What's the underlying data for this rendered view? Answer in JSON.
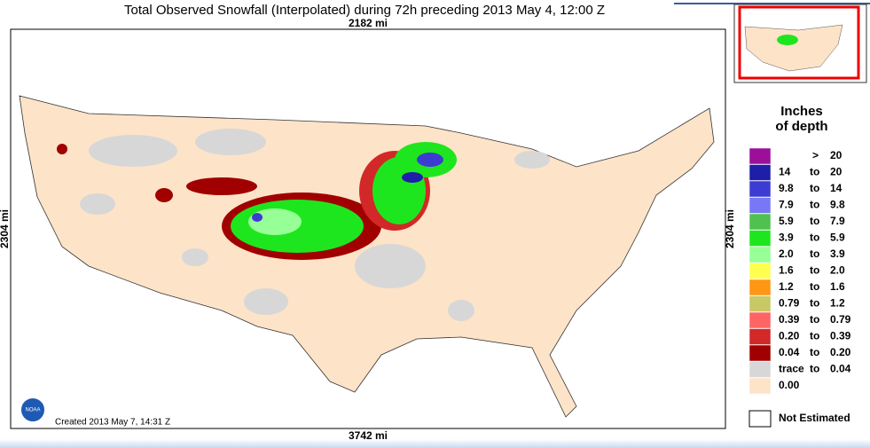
{
  "header": {
    "title": "Total Observed Snowfall (Interpolated) during 72h preceding 2013 May 4, 12:00 Z"
  },
  "map": {
    "top_distance": "2182 mi",
    "left_distance": "2304 mi",
    "right_distance": "2304 mi",
    "bottom_distance": "3742 mi",
    "created": "Created 2013 May 7, 14:31 Z",
    "logo": "NOAA"
  },
  "legend": {
    "title_line1": "Inches",
    "title_line2": "of depth",
    "rows": [
      {
        "mid": ">",
        "high": "20",
        "color": "#9b0f9b"
      },
      {
        "low": "14",
        "mid": "to",
        "high": "20",
        "color": "#1e1eaa"
      },
      {
        "low": "9.8",
        "mid": "to",
        "high": "14",
        "color": "#3c3cd2"
      },
      {
        "low": "7.9",
        "mid": "to",
        "high": "9.8",
        "color": "#7878f5"
      },
      {
        "low": "5.9",
        "mid": "to",
        "high": "7.9",
        "color": "#50c050"
      },
      {
        "low": "3.9",
        "mid": "to",
        "high": "5.9",
        "color": "#1ee61e"
      },
      {
        "low": "2.0",
        "mid": "to",
        "high": "3.9",
        "color": "#96ff96"
      },
      {
        "low": "1.6",
        "mid": "to",
        "high": "2.0",
        "color": "#ffff50"
      },
      {
        "low": "1.2",
        "mid": "to",
        "high": "1.6",
        "color": "#ff9614"
      },
      {
        "low": "0.79",
        "mid": "to",
        "high": "1.2",
        "color": "#c8c864"
      },
      {
        "low": "0.39",
        "mid": "to",
        "high": "0.79",
        "color": "#ff6464"
      },
      {
        "low": "0.20",
        "mid": "to",
        "high": "0.39",
        "color": "#d22828"
      },
      {
        "low": "0.04",
        "mid": "to",
        "high": "0.20",
        "color": "#a00000"
      },
      {
        "low": "trace",
        "mid": "to",
        "high": "0.04",
        "color": "#d7d7d7"
      },
      {
        "low": "0.00",
        "color": "#fde3c8"
      }
    ],
    "not_estimated": "Not Estimated"
  }
}
